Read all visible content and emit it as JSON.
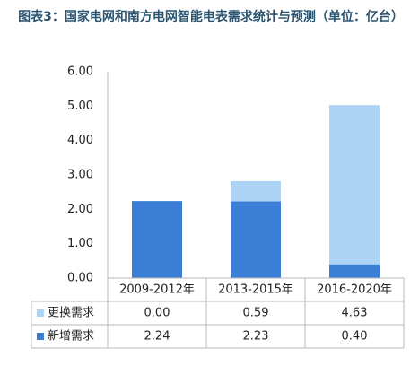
{
  "chart_data": {
    "type": "stacked-bar",
    "title": "图表3：国家电网和南方电网智能电表需求统计与预测（单位：亿台）",
    "categories": [
      "2009-2012年",
      "2013-2015年",
      "2016-2020年"
    ],
    "series": [
      {
        "name": "更换需求",
        "color": "#add4f5",
        "values": [
          0,
          0.59,
          4.63
        ],
        "value_labels": [
          "0.00",
          "0.59",
          "4.63"
        ]
      },
      {
        "name": "新增需求",
        "color": "#3a7fd5",
        "values": [
          2.24,
          2.23,
          0.4
        ],
        "value_labels": [
          "2.24",
          "2.23",
          "0.40"
        ]
      }
    ],
    "ylim": [
      0,
      6
    ],
    "yticks": [
      {
        "value": 0,
        "label": "0.00"
      },
      {
        "value": 1,
        "label": "1.00"
      },
      {
        "value": 2,
        "label": "2.00"
      },
      {
        "value": 3,
        "label": "3.00"
      },
      {
        "value": 4,
        "label": "4.00"
      },
      {
        "value": 5,
        "label": "5.00"
      },
      {
        "value": 6,
        "label": "6.00"
      }
    ],
    "grid": false
  }
}
